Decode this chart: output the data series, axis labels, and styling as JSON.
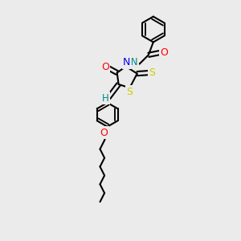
{
  "background_color": "#ebebeb",
  "bond_color": "#000000",
  "atom_colors": {
    "N": "#0000ff",
    "O": "#ff0000",
    "S": "#cccc00",
    "H": "#008888",
    "C": "#000000"
  },
  "bond_width": 1.5,
  "dbo": 0.012,
  "figsize": [
    3.0,
    3.0
  ],
  "dpi": 100
}
